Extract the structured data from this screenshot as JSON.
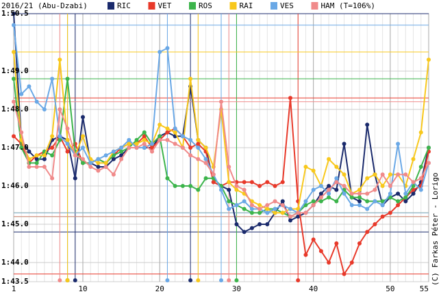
{
  "chart_data": {
    "type": "line",
    "title": "2016/21 (Abu-Dzabi)",
    "note": "(T=106%)",
    "copyright": "(C) Farkas Péter - Lorigo",
    "x": [
      1,
      2,
      3,
      4,
      5,
      6,
      7,
      8,
      9,
      10,
      11,
      12,
      13,
      14,
      15,
      16,
      17,
      18,
      19,
      20,
      21,
      22,
      23,
      24,
      25,
      26,
      27,
      28,
      29,
      30,
      31,
      32,
      33,
      34,
      35,
      36,
      37,
      38,
      39,
      40,
      41,
      42,
      43,
      44,
      45,
      46,
      47,
      48,
      49,
      50,
      51,
      52,
      53,
      54,
      55
    ],
    "xlim": [
      1,
      55
    ],
    "xticks": [
      1,
      10,
      20,
      30,
      40,
      50,
      55
    ],
    "ylim": [
      103.5,
      110.5
    ],
    "yticks": [
      {
        "value": 110.5,
        "label": "1:50.5"
      },
      {
        "value": 109,
        "label": "1:49.0"
      },
      {
        "value": 108,
        "label": "1:48.0"
      },
      {
        "value": 107,
        "label": "1:47.0"
      },
      {
        "value": 106,
        "label": "1:46.0"
      },
      {
        "value": 105,
        "label": "1:45.0"
      },
      {
        "value": 104,
        "label": "1:44.0"
      },
      {
        "value": 103.5,
        "label": "1:43.5"
      }
    ],
    "grid": true,
    "series": [
      {
        "name": "RIC",
        "color": "#1a2a6c",
        "pit_laps": [
          9,
          24
        ],
        "values": [
          110.5,
          107.2,
          106.9,
          106.7,
          106.7,
          107.2,
          107.3,
          107.2,
          106.2,
          107.8,
          106.6,
          106.5,
          106.5,
          106.7,
          106.8,
          107.0,
          107.0,
          107.0,
          107.0,
          107.3,
          107.4,
          107.3,
          107.3,
          108.6,
          107.2,
          107.0,
          106.1,
          106.0,
          105.9,
          105.0,
          104.8,
          104.9,
          105.0,
          105.0,
          105.3,
          105.6,
          105.1,
          105.2,
          105.3,
          105.5,
          105.8,
          106.0,
          105.9,
          107.1,
          105.7,
          105.6,
          107.6,
          106.3,
          105.5,
          105.7,
          105.8,
          105.6,
          105.8,
          106.1,
          107.0
        ]
      },
      {
        "name": "VET",
        "color": "#e8392a",
        "pit_laps": [
          8,
          38
        ],
        "values": [
          107.3,
          107.1,
          106.6,
          106.8,
          106.9,
          107.0,
          107.3,
          106.9,
          107.1,
          106.6,
          106.6,
          106.7,
          106.6,
          106.8,
          107.0,
          107.1,
          107.1,
          107.3,
          107.0,
          107.2,
          107.4,
          107.5,
          107.3,
          107.0,
          107.1,
          106.9,
          106.1,
          106.0,
          106.1,
          106.1,
          106.1,
          106.1,
          106.0,
          106.1,
          106.0,
          106.1,
          108.3,
          105.6,
          104.2,
          104.6,
          104.3,
          104.0,
          104.5,
          103.7,
          104.0,
          104.5,
          104.8,
          105.0,
          105.2,
          105.3,
          105.5,
          105.7,
          105.9,
          106.0,
          106.9
        ]
      },
      {
        "name": "ROS",
        "color": "#3cb44b",
        "pit_laps": [
          8,
          30
        ],
        "values": [
          108.8,
          107.0,
          106.6,
          106.6,
          106.9,
          106.8,
          107.2,
          108.8,
          106.9,
          106.6,
          106.6,
          106.7,
          106.6,
          106.8,
          106.9,
          107.0,
          107.2,
          107.4,
          107.1,
          107.3,
          106.2,
          106.0,
          106.0,
          106.0,
          105.9,
          106.2,
          106.2,
          106.0,
          105.6,
          105.5,
          105.4,
          105.3,
          105.3,
          105.4,
          105.4,
          105.3,
          105.2,
          105.3,
          105.5,
          105.6,
          105.6,
          105.7,
          105.6,
          105.9,
          105.7,
          105.7,
          105.6,
          105.6,
          105.6,
          105.7,
          105.6,
          105.7,
          106.0,
          106.5,
          107.0
        ]
      },
      {
        "name": "RAI",
        "color": "#f8c81c",
        "pit_laps": [
          8,
          25
        ],
        "values": [
          109.5,
          107.2,
          106.7,
          106.8,
          106.8,
          107.3,
          109.3,
          107.2,
          106.8,
          107.3,
          106.7,
          106.6,
          106.6,
          106.9,
          107.0,
          107.1,
          107.1,
          107.2,
          107.1,
          107.6,
          107.5,
          107.4,
          107.0,
          108.8,
          107.2,
          107.0,
          106.5,
          108.0,
          106.1,
          105.9,
          105.8,
          105.6,
          105.5,
          105.4,
          105.3,
          105.3,
          105.4,
          105.4,
          106.5,
          106.4,
          106.0,
          106.7,
          106.5,
          106.3,
          105.8,
          105.9,
          106.2,
          106.3,
          106.0,
          106.3,
          106.3,
          106.0,
          106.7,
          107.4,
          109.3
        ]
      },
      {
        "name": "VES",
        "color": "#6aa8e6",
        "pit_laps": [
          21,
          28
        ],
        "values": [
          110.2,
          108.4,
          108.6,
          108.2,
          108.0,
          108.8,
          107.3,
          107.1,
          106.8,
          107.0,
          106.6,
          106.7,
          106.8,
          106.9,
          107.0,
          107.2,
          107.0,
          107.0,
          107.1,
          109.5,
          109.6,
          107.5,
          107.3,
          107.2,
          107.0,
          106.7,
          106.3,
          105.9,
          105.4,
          105.5,
          105.6,
          105.4,
          105.4,
          105.3,
          105.4,
          105.5,
          105.4,
          105.3,
          105.6,
          105.9,
          106.0,
          105.8,
          106.2,
          105.8,
          105.5,
          105.5,
          105.4,
          105.6,
          105.5,
          105.8,
          107.1,
          105.8,
          106.1,
          105.9,
          106.6
        ]
      },
      {
        "name": "HAM",
        "color": "#f08a8a",
        "pit_laps": [
          7,
          29
        ],
        "values": [
          108.2,
          107.4,
          106.5,
          106.5,
          106.5,
          106.2,
          108.0,
          107.5,
          106.8,
          106.7,
          106.5,
          106.4,
          106.5,
          106.3,
          106.7,
          107.0,
          107.0,
          107.1,
          106.9,
          107.2,
          107.2,
          107.1,
          107.0,
          106.8,
          106.7,
          106.6,
          106.3,
          108.2,
          106.5,
          106.0,
          105.9,
          105.5,
          105.4,
          105.5,
          105.6,
          105.5,
          105.2,
          105.3,
          105.3,
          105.5,
          105.7,
          105.9,
          106.1,
          106.0,
          105.8,
          105.8,
          105.8,
          105.9,
          106.3,
          106.0,
          106.3,
          106.3,
          106.1,
          106.2,
          106.6
        ]
      }
    ]
  }
}
